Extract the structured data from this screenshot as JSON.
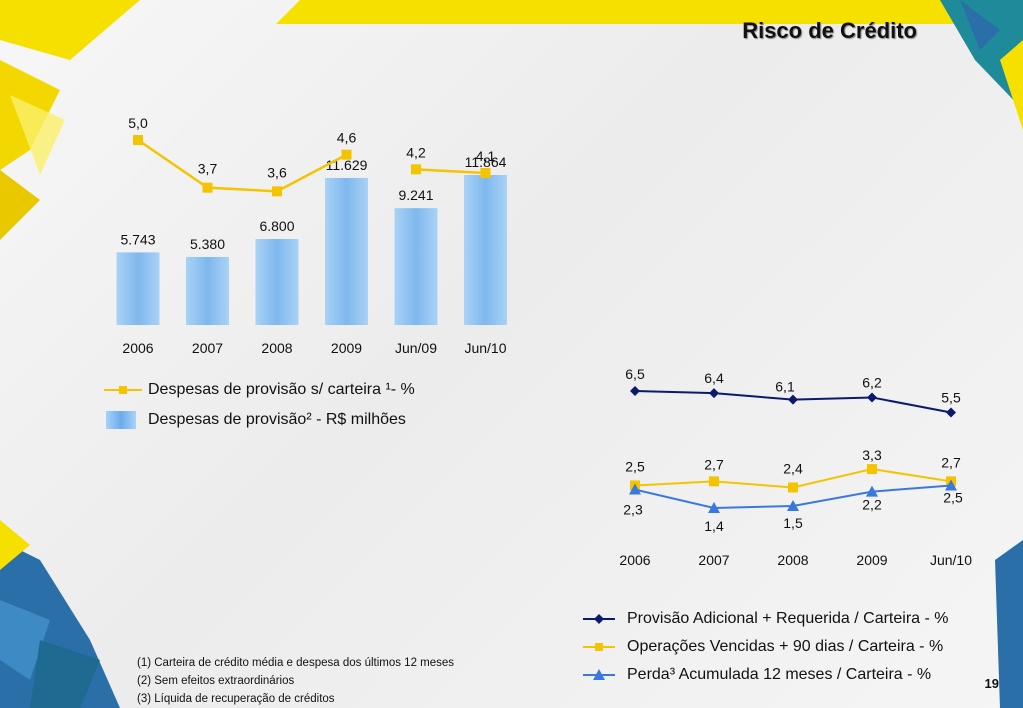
{
  "title": "Risco de Crédito",
  "page_number": "19",
  "colors": {
    "yellow": "#f5c400",
    "navy": "#0a1a6e",
    "blue": "#3a78e0",
    "bar": "#7fb8ee",
    "deco_yellow": "#f5e000",
    "deco_blue": "#2a6fa8",
    "deco_teal": "#1f8a9a"
  },
  "legend_left": {
    "line_label": "Despesas de provisão s/ carteira ¹- %",
    "bar_label": "Despesas de provisão² - R$ milhões"
  },
  "legend_right": {
    "navy_label": "Provisão Adicional + Requerida / Carteira - %",
    "yellow_label": "Operações Vencidas + 90 dias / Carteira - %",
    "blue_label": "Perda³ Acumulada 12 meses / Carteira - %"
  },
  "footnotes": [
    "(1) Carteira de crédito média e despesa dos últimos 12 meses",
    "(2) Sem efeitos extraordinários",
    "(3) Líquida de recuperação de créditos"
  ],
  "chart_data": [
    {
      "type": "bar",
      "title": "",
      "categories": [
        "2006",
        "2007",
        "2008",
        "2009",
        "Jun/09",
        "Jun/10"
      ],
      "series": [
        {
          "name": "Despesas de provisão² - R$ milhões",
          "type": "bar",
          "values": [
            5743,
            5380,
            6800,
            11629,
            9241,
            11864
          ],
          "labels": [
            "5.743",
            "5.380",
            "6.800",
            "11.629",
            "9.241",
            "11.864"
          ]
        },
        {
          "name": "Despesas de provisão s/ carteira ¹- %",
          "type": "line",
          "segments": [
            [
              0,
              3
            ],
            [
              4,
              5
            ]
          ],
          "values": [
            5.0,
            3.7,
            3.6,
            4.6,
            4.2,
            4.1
          ],
          "labels": [
            "5,0",
            "3,7",
            "3,6",
            "4,6",
            "4,2",
            "4,1"
          ]
        }
      ],
      "ylim": [
        0,
        12000
      ]
    },
    {
      "type": "line",
      "title": "",
      "categories": [
        "2006",
        "2007",
        "2008",
        "2009",
        "Jun/10"
      ],
      "series": [
        {
          "name": "Provisão Adicional + Requerida / Carteira - %",
          "marker": "diamond",
          "values": [
            6.5,
            6.4,
            6.1,
            6.2,
            5.5
          ],
          "labels": [
            "6,5",
            "6,4",
            "6,1",
            "6,2",
            "5,5"
          ]
        },
        {
          "name": "Operações Vencidas + 90 dias / Carteira - %",
          "marker": "square",
          "values": [
            2.5,
            2.7,
            2.4,
            3.3,
            2.7
          ],
          "labels": [
            "2,5",
            "2,7",
            "2,4",
            "3,3",
            "2,7"
          ]
        },
        {
          "name": "Perda³ Acumulada 12 meses / Carteira - %",
          "marker": "triangle",
          "values": [
            2.3,
            1.4,
            1.5,
            2.2,
            2.5
          ],
          "labels": [
            "2,3",
            "1,4",
            "1,5",
            "2,2",
            "2,5"
          ]
        }
      ]
    }
  ]
}
